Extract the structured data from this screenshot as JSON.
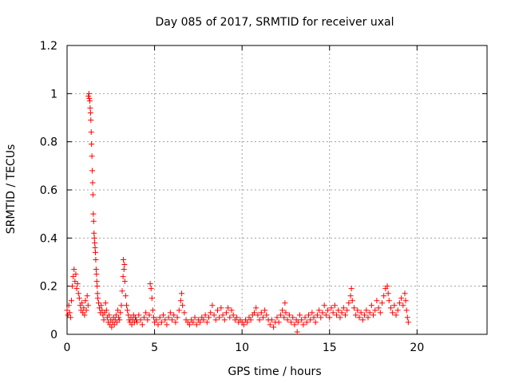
{
  "chart_data": {
    "type": "scatter",
    "title": "Day 085 of 2017, SRMTID for receiver uxal",
    "xlabel": "GPS time / hours",
    "ylabel": "SRMTID / TECUs",
    "xlim": [
      0,
      24
    ],
    "ylim": [
      0,
      1.2
    ],
    "x_ticks": [
      0,
      5,
      10,
      15,
      20
    ],
    "x_tick_labels": [
      "0",
      "5",
      "10",
      "15",
      "20"
    ],
    "y_ticks": [
      0,
      0.2,
      0.4,
      0.6,
      0.8,
      1.0,
      1.2
    ],
    "y_tick_labels": [
      "0",
      "0.2",
      "0.4",
      "0.6",
      "0.8",
      "1",
      "1.2"
    ],
    "grid": true,
    "marker": "+",
    "color": "#ff0000",
    "series": [
      {
        "name": "SRMTID",
        "points": [
          [
            0.0,
            0.1
          ],
          [
            0.05,
            0.08
          ],
          [
            0.1,
            0.12
          ],
          [
            0.15,
            0.09
          ],
          [
            0.2,
            0.07
          ],
          [
            0.25,
            0.14
          ],
          [
            0.3,
            0.2
          ],
          [
            0.35,
            0.24
          ],
          [
            0.4,
            0.27
          ],
          [
            0.45,
            0.22
          ],
          [
            0.5,
            0.25
          ],
          [
            0.55,
            0.19
          ],
          [
            0.6,
            0.21
          ],
          [
            0.65,
            0.17
          ],
          [
            0.7,
            0.15
          ],
          [
            0.75,
            0.12
          ],
          [
            0.8,
            0.1
          ],
          [
            0.85,
            0.13
          ],
          [
            0.9,
            0.09
          ],
          [
            0.95,
            0.11
          ],
          [
            1.0,
            0.08
          ],
          [
            1.05,
            0.14
          ],
          [
            1.1,
            0.1
          ],
          [
            1.15,
            0.16
          ],
          [
            1.2,
            0.12
          ],
          [
            1.22,
            0.99
          ],
          [
            1.25,
            1.0
          ],
          [
            1.27,
            0.98
          ],
          [
            1.3,
            0.97
          ],
          [
            1.32,
            0.94
          ],
          [
            1.34,
            0.92
          ],
          [
            1.36,
            0.89
          ],
          [
            1.38,
            0.84
          ],
          [
            1.4,
            0.79
          ],
          [
            1.42,
            0.74
          ],
          [
            1.44,
            0.68
          ],
          [
            1.46,
            0.63
          ],
          [
            1.48,
            0.58
          ],
          [
            1.5,
            0.5
          ],
          [
            1.52,
            0.47
          ],
          [
            1.54,
            0.42
          ],
          [
            1.56,
            0.4
          ],
          [
            1.58,
            0.38
          ],
          [
            1.6,
            0.36
          ],
          [
            1.62,
            0.34
          ],
          [
            1.64,
            0.31
          ],
          [
            1.66,
            0.27
          ],
          [
            1.68,
            0.25
          ],
          [
            1.7,
            0.22
          ],
          [
            1.72,
            0.2
          ],
          [
            1.74,
            0.17
          ],
          [
            1.76,
            0.15
          ],
          [
            1.8,
            0.13
          ],
          [
            1.85,
            0.11
          ],
          [
            1.9,
            0.09
          ],
          [
            1.95,
            0.12
          ],
          [
            2.0,
            0.1
          ],
          [
            2.05,
            0.08
          ],
          [
            2.1,
            0.06
          ],
          [
            2.15,
            0.09
          ],
          [
            2.2,
            0.13
          ],
          [
            2.25,
            0.1
          ],
          [
            2.3,
            0.07
          ],
          [
            2.35,
            0.05
          ],
          [
            2.4,
            0.08
          ],
          [
            2.45,
            0.04
          ],
          [
            2.5,
            0.06
          ],
          [
            2.55,
            0.03
          ],
          [
            2.6,
            0.05
          ],
          [
            2.65,
            0.07
          ],
          [
            2.7,
            0.04
          ],
          [
            2.75,
            0.06
          ],
          [
            2.8,
            0.08
          ],
          [
            2.85,
            0.05
          ],
          [
            2.9,
            0.1
          ],
          [
            2.95,
            0.07
          ],
          [
            3.0,
            0.06
          ],
          [
            3.05,
            0.09
          ],
          [
            3.1,
            0.12
          ],
          [
            3.15,
            0.18
          ],
          [
            3.2,
            0.24
          ],
          [
            3.22,
            0.31
          ],
          [
            3.25,
            0.27
          ],
          [
            3.28,
            0.29
          ],
          [
            3.3,
            0.22
          ],
          [
            3.35,
            0.16
          ],
          [
            3.4,
            0.12
          ],
          [
            3.45,
            0.1
          ],
          [
            3.5,
            0.08
          ],
          [
            3.55,
            0.06
          ],
          [
            3.6,
            0.05
          ],
          [
            3.65,
            0.07
          ],
          [
            3.7,
            0.04
          ],
          [
            3.75,
            0.06
          ],
          [
            3.8,
            0.08
          ],
          [
            3.85,
            0.05
          ],
          [
            3.9,
            0.07
          ],
          [
            3.95,
            0.06
          ],
          [
            4.0,
            0.05
          ],
          [
            4.1,
            0.08
          ],
          [
            4.2,
            0.06
          ],
          [
            4.3,
            0.04
          ],
          [
            4.4,
            0.07
          ],
          [
            4.5,
            0.09
          ],
          [
            4.6,
            0.06
          ],
          [
            4.7,
            0.08
          ],
          [
            4.75,
            0.21
          ],
          [
            4.8,
            0.19
          ],
          [
            4.85,
            0.15
          ],
          [
            4.9,
            0.1
          ],
          [
            4.95,
            0.07
          ],
          [
            5.0,
            0.05
          ],
          [
            5.1,
            0.06
          ],
          [
            5.2,
            0.04
          ],
          [
            5.3,
            0.07
          ],
          [
            5.4,
            0.05
          ],
          [
            5.5,
            0.08
          ],
          [
            5.6,
            0.06
          ],
          [
            5.7,
            0.04
          ],
          [
            5.8,
            0.07
          ],
          [
            5.9,
            0.09
          ],
          [
            6.0,
            0.06
          ],
          [
            6.1,
            0.08
          ],
          [
            6.2,
            0.05
          ],
          [
            6.3,
            0.07
          ],
          [
            6.4,
            0.1
          ],
          [
            6.5,
            0.14
          ],
          [
            6.55,
            0.17
          ],
          [
            6.6,
            0.12
          ],
          [
            6.7,
            0.09
          ],
          [
            6.8,
            0.06
          ],
          [
            6.9,
            0.05
          ],
          [
            7.0,
            0.04
          ],
          [
            7.1,
            0.06
          ],
          [
            7.2,
            0.05
          ],
          [
            7.3,
            0.07
          ],
          [
            7.4,
            0.04
          ],
          [
            7.5,
            0.06
          ],
          [
            7.6,
            0.05
          ],
          [
            7.7,
            0.07
          ],
          [
            7.8,
            0.06
          ],
          [
            7.9,
            0.08
          ],
          [
            8.0,
            0.05
          ],
          [
            8.1,
            0.07
          ],
          [
            8.2,
            0.09
          ],
          [
            8.3,
            0.12
          ],
          [
            8.4,
            0.08
          ],
          [
            8.5,
            0.06
          ],
          [
            8.6,
            0.1
          ],
          [
            8.7,
            0.07
          ],
          [
            8.8,
            0.11
          ],
          [
            8.9,
            0.08
          ],
          [
            9.0,
            0.06
          ],
          [
            9.1,
            0.09
          ],
          [
            9.2,
            0.11
          ],
          [
            9.3,
            0.07
          ],
          [
            9.4,
            0.1
          ],
          [
            9.5,
            0.08
          ],
          [
            9.6,
            0.06
          ],
          [
            9.7,
            0.07
          ],
          [
            9.8,
            0.05
          ],
          [
            9.9,
            0.06
          ],
          [
            10.0,
            0.05
          ],
          [
            10.1,
            0.04
          ],
          [
            10.2,
            0.06
          ],
          [
            10.3,
            0.05
          ],
          [
            10.4,
            0.07
          ],
          [
            10.5,
            0.06
          ],
          [
            10.6,
            0.08
          ],
          [
            10.7,
            0.09
          ],
          [
            10.8,
            0.11
          ],
          [
            10.9,
            0.08
          ],
          [
            11.0,
            0.06
          ],
          [
            11.1,
            0.09
          ],
          [
            11.2,
            0.07
          ],
          [
            11.3,
            0.1
          ],
          [
            11.4,
            0.08
          ],
          [
            11.5,
            0.06
          ],
          [
            11.6,
            0.04
          ],
          [
            11.7,
            0.06
          ],
          [
            11.8,
            0.03
          ],
          [
            11.9,
            0.05
          ],
          [
            12.0,
            0.07
          ],
          [
            12.1,
            0.05
          ],
          [
            12.2,
            0.08
          ],
          [
            12.3,
            0.1
          ],
          [
            12.4,
            0.07
          ],
          [
            12.45,
            0.13
          ],
          [
            12.5,
            0.09
          ],
          [
            12.6,
            0.06
          ],
          [
            12.7,
            0.08
          ],
          [
            12.8,
            0.05
          ],
          [
            12.9,
            0.07
          ],
          [
            13.0,
            0.04
          ],
          [
            13.1,
            0.06
          ],
          [
            13.15,
            0.01
          ],
          [
            13.2,
            0.05
          ],
          [
            13.3,
            0.08
          ],
          [
            13.4,
            0.06
          ],
          [
            13.5,
            0.04
          ],
          [
            13.6,
            0.07
          ],
          [
            13.7,
            0.05
          ],
          [
            13.8,
            0.08
          ],
          [
            13.9,
            0.06
          ],
          [
            14.0,
            0.09
          ],
          [
            14.1,
            0.07
          ],
          [
            14.2,
            0.05
          ],
          [
            14.3,
            0.08
          ],
          [
            14.4,
            0.1
          ],
          [
            14.5,
            0.07
          ],
          [
            14.6,
            0.09
          ],
          [
            14.7,
            0.12
          ],
          [
            14.8,
            0.08
          ],
          [
            14.9,
            0.1
          ],
          [
            15.0,
            0.07
          ],
          [
            15.1,
            0.11
          ],
          [
            15.2,
            0.09
          ],
          [
            15.3,
            0.12
          ],
          [
            15.4,
            0.08
          ],
          [
            15.5,
            0.1
          ],
          [
            15.6,
            0.07
          ],
          [
            15.7,
            0.09
          ],
          [
            15.8,
            0.11
          ],
          [
            15.9,
            0.08
          ],
          [
            16.0,
            0.1
          ],
          [
            16.1,
            0.13
          ],
          [
            16.2,
            0.16
          ],
          [
            16.25,
            0.19
          ],
          [
            16.3,
            0.14
          ],
          [
            16.4,
            0.11
          ],
          [
            16.5,
            0.08
          ],
          [
            16.6,
            0.1
          ],
          [
            16.7,
            0.07
          ],
          [
            16.8,
            0.09
          ],
          [
            16.9,
            0.06
          ],
          [
            17.0,
            0.08
          ],
          [
            17.1,
            0.1
          ],
          [
            17.2,
            0.07
          ],
          [
            17.3,
            0.09
          ],
          [
            17.4,
            0.12
          ],
          [
            17.5,
            0.08
          ],
          [
            17.6,
            0.1
          ],
          [
            17.7,
            0.14
          ],
          [
            17.8,
            0.11
          ],
          [
            17.9,
            0.09
          ],
          [
            18.0,
            0.13
          ],
          [
            18.1,
            0.16
          ],
          [
            18.2,
            0.19
          ],
          [
            18.3,
            0.2
          ],
          [
            18.35,
            0.17
          ],
          [
            18.4,
            0.14
          ],
          [
            18.5,
            0.11
          ],
          [
            18.6,
            0.09
          ],
          [
            18.7,
            0.12
          ],
          [
            18.8,
            0.08
          ],
          [
            18.9,
            0.1
          ],
          [
            19.0,
            0.13
          ],
          [
            19.1,
            0.15
          ],
          [
            19.2,
            0.12
          ],
          [
            19.3,
            0.17
          ],
          [
            19.35,
            0.14
          ],
          [
            19.4,
            0.1
          ],
          [
            19.45,
            0.07
          ],
          [
            19.5,
            0.05
          ]
        ]
      }
    ]
  }
}
